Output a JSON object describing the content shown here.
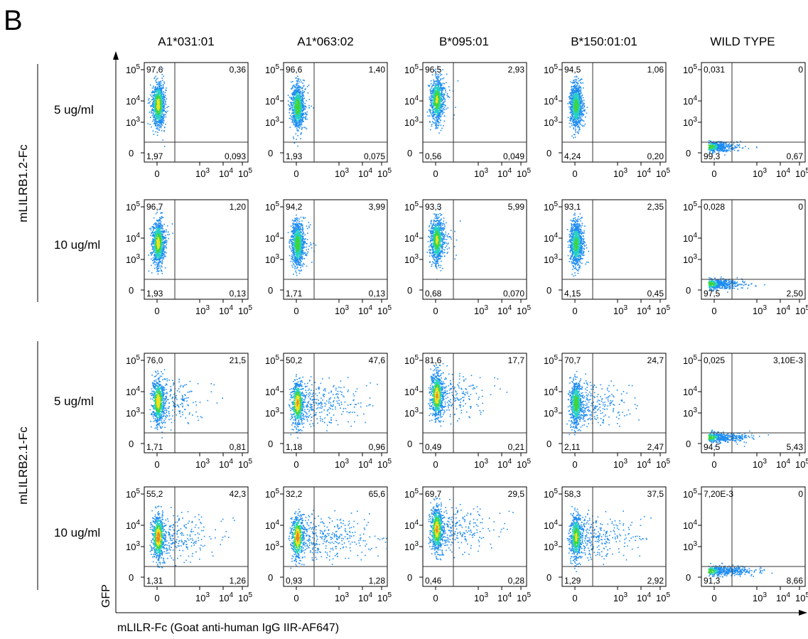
{
  "panel_letter": "B",
  "columns": [
    "A1*031:01",
    "A1*063:02",
    "B*095:01",
    "B*150:01:01",
    "WILD TYPE"
  ],
  "groups": [
    "mLILRB1.2-Fc",
    "mLILRB2.1-Fc"
  ],
  "row_labels": [
    "5 ug/ml",
    "10 ug/ml",
    "5 ug/ml",
    "10 ug/ml"
  ],
  "x_axis_label": "mLILR-Fc (Goat anti-human IgG IIR-AF647)",
  "y_axis_label": "GFP",
  "chart_data": {
    "type": "scatter",
    "subtype": "flow-cytometry-density-plot-grid",
    "x_ticks": [
      "0",
      "10^3",
      "10^4",
      "10^5"
    ],
    "y_ticks": [
      "0",
      "10^3",
      "10^4",
      "10^5"
    ],
    "quadrant_order": [
      "upper-left",
      "upper-right",
      "lower-left",
      "lower-right"
    ],
    "rows": [
      {
        "group": "mLILRB1.2-Fc",
        "concentration": "5 ug/ml",
        "panels": [
          {
            "column": "A1*031:01",
            "quadrants": [
              "97,6",
              "0,36",
              "1,97",
              "0,093"
            ],
            "spread": 0.05,
            "hot": 0.7,
            "ycenter": 0.58,
            "xcenter": 0.13
          },
          {
            "column": "A1*063:02",
            "quadrants": [
              "96,6",
              "1,40",
              "1,93",
              "0,075"
            ],
            "spread": 0.07,
            "hot": 0.6,
            "ycenter": 0.56,
            "xcenter": 0.13
          },
          {
            "column": "B*095:01",
            "quadrants": [
              "96,5",
              "2,93",
              "0,56",
              "0,049"
            ],
            "spread": 0.09,
            "hot": 0.65,
            "ycenter": 0.63,
            "xcenter": 0.13
          },
          {
            "column": "B*150:01:01",
            "quadrants": [
              "94,5",
              "1,06",
              "4,24",
              "0,20"
            ],
            "spread": 0.05,
            "hot": 0.55,
            "ycenter": 0.57,
            "xcenter": 0.13
          },
          {
            "column": "WILD TYPE",
            "quadrants": [
              "0,031",
              "0",
              "99,3",
              "0,67"
            ],
            "spread": 0.16,
            "hot": 0.6,
            "ycenter": 0.16,
            "xcenter": 0.08,
            "wild": true
          }
        ]
      },
      {
        "group": "mLILRB1.2-Fc",
        "concentration": "10 ug/ml",
        "panels": [
          {
            "column": "A1*031:01",
            "quadrants": [
              "96,7",
              "1,20",
              "1,93",
              "0,13"
            ],
            "spread": 0.06,
            "hot": 0.7,
            "ycenter": 0.57,
            "xcenter": 0.13
          },
          {
            "column": "A1*063:02",
            "quadrants": [
              "94,2",
              "3,99",
              "1,71",
              "0,13"
            ],
            "spread": 0.08,
            "hot": 0.6,
            "ycenter": 0.56,
            "xcenter": 0.13
          },
          {
            "column": "B*095:01",
            "quadrants": [
              "93,3",
              "5,99",
              "0,68",
              "0,070"
            ],
            "spread": 0.1,
            "hot": 0.65,
            "ycenter": 0.6,
            "xcenter": 0.13
          },
          {
            "column": "B*150:01:01",
            "quadrants": [
              "93,1",
              "2,35",
              "4,15",
              "0,45"
            ],
            "spread": 0.06,
            "hot": 0.55,
            "ycenter": 0.56,
            "xcenter": 0.13
          },
          {
            "column": "WILD TYPE",
            "quadrants": [
              "0,028",
              "0",
              "97,5",
              "2,50"
            ],
            "spread": 0.2,
            "hot": 0.6,
            "ycenter": 0.16,
            "xcenter": 0.08,
            "wild": true
          }
        ]
      },
      {
        "group": "mLILRB2.1-Fc",
        "concentration": "5 ug/ml",
        "panels": [
          {
            "column": "A1*031:01",
            "quadrants": [
              "76,0",
              "21,5",
              "1,71",
              "0,81"
            ],
            "spread": 0.22,
            "hot": 0.75,
            "ycenter": 0.52,
            "xcenter": 0.13
          },
          {
            "column": "A1*063:02",
            "quadrants": [
              "50,2",
              "47,6",
              "1,18",
              "0,96"
            ],
            "spread": 0.32,
            "hot": 0.8,
            "ycenter": 0.5,
            "xcenter": 0.13
          },
          {
            "column": "B*095:01",
            "quadrants": [
              "81,6",
              "17,7",
              "0,49",
              "0,21"
            ],
            "spread": 0.24,
            "hot": 0.8,
            "ycenter": 0.58,
            "xcenter": 0.13
          },
          {
            "column": "B*150:01:01",
            "quadrants": [
              "70,7",
              "24,7",
              "2,11",
              "2,47"
            ],
            "spread": 0.26,
            "hot": 0.6,
            "ycenter": 0.5,
            "xcenter": 0.13
          },
          {
            "column": "WILD TYPE",
            "quadrants": [
              "0,025",
              "3,10E-3",
              "94,5",
              "5,43"
            ],
            "spread": 0.24,
            "hot": 0.6,
            "ycenter": 0.16,
            "xcenter": 0.08,
            "wild": true
          }
        ]
      },
      {
        "group": "mLILRB2.1-Fc",
        "concentration": "10 ug/ml",
        "panels": [
          {
            "column": "A1*031:01",
            "quadrants": [
              "55,2",
              "42,3",
              "1,31",
              "1,26"
            ],
            "spread": 0.3,
            "hot": 0.85,
            "ycenter": 0.5,
            "xcenter": 0.13
          },
          {
            "column": "A1*063:02",
            "quadrants": [
              "32,2",
              "65,6",
              "0,93",
              "1,28"
            ],
            "spread": 0.38,
            "hot": 0.85,
            "ycenter": 0.5,
            "xcenter": 0.13
          },
          {
            "column": "B*095:01",
            "quadrants": [
              "69,7",
              "29,5",
              "0,46",
              "0,28"
            ],
            "spread": 0.3,
            "hot": 0.8,
            "ycenter": 0.58,
            "xcenter": 0.13
          },
          {
            "column": "B*150:01:01",
            "quadrants": [
              "58,3",
              "37,5",
              "1,29",
              "2,92"
            ],
            "spread": 0.3,
            "hot": 0.65,
            "ycenter": 0.5,
            "xcenter": 0.13
          },
          {
            "column": "WILD TYPE",
            "quadrants": [
              "7,20E-3",
              "0",
              "91,3",
              "8,66"
            ],
            "spread": 0.3,
            "hot": 0.6,
            "ycenter": 0.16,
            "xcenter": 0.08,
            "wild": true
          }
        ]
      }
    ]
  }
}
